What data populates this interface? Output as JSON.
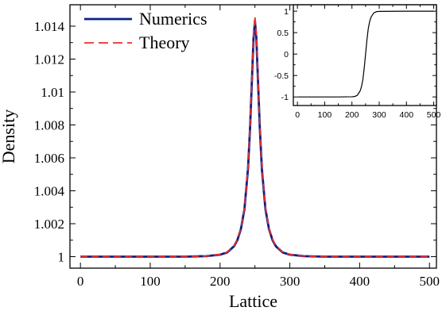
{
  "chart_data": [
    {
      "type": "line",
      "xlabel": "Lattice",
      "ylabel": "Density",
      "xlim": [
        -15,
        510
      ],
      "ylim": [
        0.9993,
        1.0153
      ],
      "x_ticks": [
        0,
        100,
        200,
        300,
        400,
        500
      ],
      "y_ticks": [
        1,
        1.002,
        1.004,
        1.006,
        1.008,
        1.01,
        1.012,
        1.014
      ],
      "legend": "top-left",
      "grid": false,
      "series": [
        {
          "name": "Numerics",
          "style": "solid",
          "color": "#0a1f8c",
          "x": [
            0,
            100,
            150,
            180,
            200,
            210,
            220,
            225,
            230,
            235,
            240,
            243,
            246,
            248,
            250,
            252,
            254,
            257,
            260,
            265,
            270,
            275,
            280,
            290,
            300,
            320,
            350,
            400,
            500
          ],
          "y": [
            1.0,
            1.0,
            1.0,
            1.00003,
            1.00012,
            1.00025,
            1.00063,
            1.00102,
            1.0017,
            1.0029,
            1.0053,
            1.0078,
            1.0111,
            1.0133,
            1.0143,
            1.0133,
            1.0111,
            1.0078,
            1.0053,
            1.0029,
            1.0017,
            1.00102,
            1.00063,
            1.00025,
            1.00012,
            1.00003,
            1.0,
            1.0,
            1.0
          ]
        },
        {
          "name": "Theory",
          "style": "dashed",
          "color": "#e8302a",
          "x": [
            0,
            100,
            150,
            180,
            200,
            210,
            220,
            225,
            230,
            235,
            240,
            243,
            246,
            248,
            250,
            252,
            254,
            257,
            260,
            265,
            270,
            275,
            280,
            290,
            300,
            320,
            350,
            400,
            500
          ],
          "y": [
            1.0,
            1.0,
            1.0,
            1.00003,
            1.00013,
            1.00027,
            1.00066,
            1.00106,
            1.00175,
            1.00297,
            1.0054,
            1.0079,
            1.0113,
            1.0135,
            1.0146,
            1.0135,
            1.0113,
            1.0079,
            1.0054,
            1.00297,
            1.00175,
            1.00106,
            1.00066,
            1.00027,
            1.00013,
            1.00003,
            1.0,
            1.0,
            1.0
          ]
        }
      ]
    },
    {
      "type": "line",
      "xlabel": "",
      "ylabel": "",
      "xlim": [
        -15,
        510
      ],
      "ylim": [
        -1.2,
        1.15
      ],
      "x_ticks": [
        0,
        100,
        200,
        300,
        400,
        500
      ],
      "y_ticks": [
        -1,
        -0.5,
        0,
        0.5,
        1
      ],
      "y_tick_labels": [
        "-1",
        "-0.5",
        "0",
        "0.5",
        "1"
      ],
      "grid": false,
      "series": [
        {
          "style": "solid",
          "color": "#000000",
          "x": [
            0,
            100,
            150,
            200,
            210,
            220,
            230,
            235,
            240,
            245,
            250,
            255,
            260,
            265,
            270,
            280,
            290,
            300,
            400,
            500
          ],
          "y": [
            -1.0,
            -1.0,
            -1.0,
            -0.995,
            -0.99,
            -0.96,
            -0.86,
            -0.76,
            -0.6,
            -0.33,
            0.0,
            0.33,
            0.6,
            0.76,
            0.86,
            0.96,
            0.99,
            0.995,
            1.0,
            1.0
          ]
        }
      ]
    }
  ]
}
